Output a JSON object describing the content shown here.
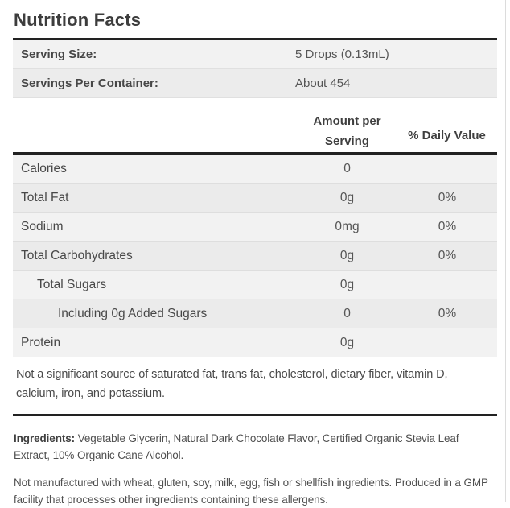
{
  "title": "Nutrition Facts",
  "serving_info": {
    "rows": [
      {
        "label": "Serving Size:",
        "value": "5 Drops (0.13mL)"
      },
      {
        "label": "Servings Per Container:",
        "value": "About 454"
      }
    ]
  },
  "table": {
    "columns": {
      "amount": "Amount per Serving",
      "daily_value": "% Daily Value"
    },
    "rows": [
      {
        "label": "Calories",
        "amount": "0",
        "daily_value": ""
      },
      {
        "label": "Total Fat",
        "amount": "0g",
        "daily_value": "0%"
      },
      {
        "label": "Sodium",
        "amount": "0mg",
        "daily_value": "0%"
      },
      {
        "label": "Total Carbohydrates",
        "amount": "0g",
        "daily_value": "0%"
      },
      {
        "label": "Total Sugars",
        "amount": "0g",
        "daily_value": ""
      },
      {
        "label": "Including 0g Added Sugars",
        "amount": "0",
        "daily_value": "0%"
      },
      {
        "label": "Protein",
        "amount": "0g",
        "daily_value": ""
      }
    ],
    "footnote": "Not a significant source of saturated fat, trans fat, cholesterol, dietary fiber, vitamin D, calcium, iron, and potassium."
  },
  "ingredients": {
    "label": "Ingredients:",
    "text": "Vegetable Glycerin, Natural Dark Chocolate Flavor, Certified Organic Stevia Leaf Extract, 10% Organic Cane Alcohol."
  },
  "allergen_note": "Not manufactured with wheat, gluten, soy, milk, egg, fish or shellfish ingredients. Produced in a GMP facility that processes other ingredients containing these allergens.",
  "colors": {
    "thick_rule": "#222222",
    "row_bg_light": "#f2f2f2",
    "row_bg_dark": "#ebebeb",
    "divider": "#dedede",
    "text": "#4a4a4a"
  }
}
